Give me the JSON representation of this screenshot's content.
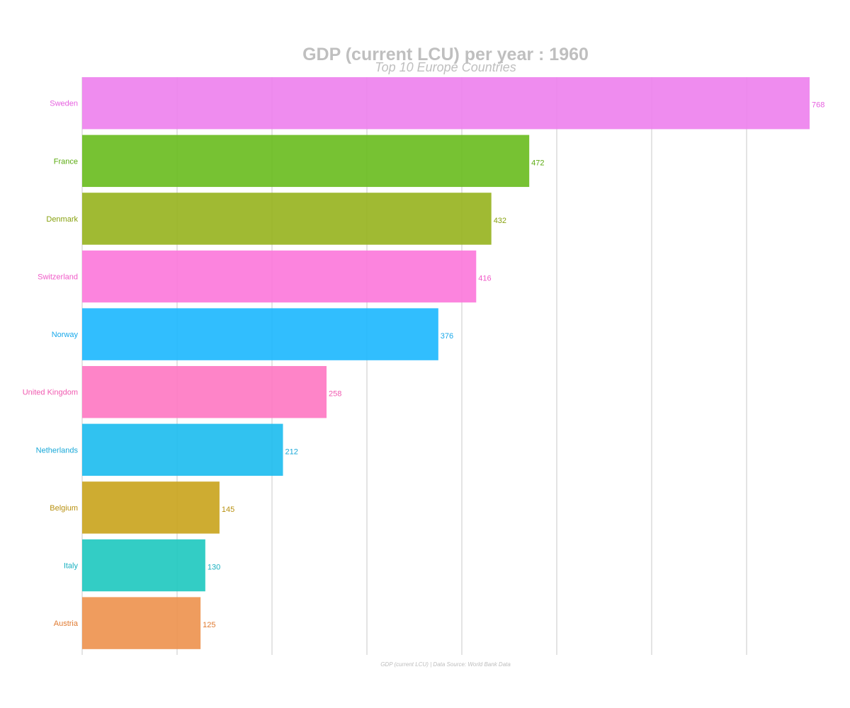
{
  "chart_data": {
    "type": "bar",
    "orientation": "horizontal",
    "title": "GDP (current LCU) per year : 1960",
    "subtitle": "Top 10 Europe Countries",
    "caption": "GDP (current LCU) | Data Source: World Bank Data",
    "xlabel": "",
    "ylabel": "",
    "xlim": [
      0,
      768
    ],
    "grid": true,
    "legend": "none",
    "categories": [
      "Sweden",
      "France",
      "Denmark",
      "Switzerland",
      "Norway",
      "United Kingdom",
      "Netherlands",
      "Belgium",
      "Italy",
      "Austria"
    ],
    "values": [
      768,
      472,
      432,
      416,
      376,
      258,
      212,
      145,
      130,
      125
    ],
    "value_labels": [
      "768",
      "472",
      "432",
      "416",
      "376",
      "258",
      "212",
      "145",
      "130",
      "125"
    ],
    "colors": [
      "#ee82ee",
      "#6bbd22",
      "#98b422",
      "#fc7adb",
      "#1fb8fe",
      "#fe7ac3",
      "#1fbdef",
      "#caa520",
      "#22c9c0",
      "#ee9450"
    ],
    "label_colors": [
      "#e660e0",
      "#5bab10",
      "#88a210",
      "#f05ac8",
      "#18a8ea",
      "#f05ab0",
      "#18a8d8",
      "#b89010",
      "#18b0c0",
      "#e07a30"
    ]
  }
}
